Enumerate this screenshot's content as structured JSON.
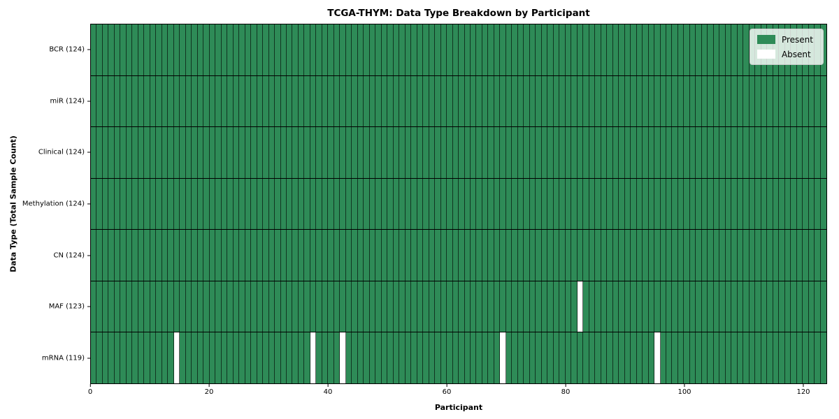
{
  "chart_data": {
    "type": "heatmap",
    "title": "TCGA-THYM: Data Type Breakdown by Participant",
    "xlabel": "Participant",
    "ylabel": "Data Type (Total Sample Count)",
    "xlim": [
      0,
      124
    ],
    "n_participants": 124,
    "x_ticks": [
      0,
      20,
      40,
      60,
      80,
      100,
      120
    ],
    "grid": "cell-borders-on",
    "legend_position": "upper-right",
    "rows": [
      {
        "label": "BCR (124)",
        "data_type": "BCR",
        "present_count": 124,
        "absent_participants": []
      },
      {
        "label": "miR (124)",
        "data_type": "miR",
        "present_count": 124,
        "absent_participants": []
      },
      {
        "label": "Clinical (124)",
        "data_type": "Clinical",
        "present_count": 124,
        "absent_participants": []
      },
      {
        "label": "Methylation (124)",
        "data_type": "Methylation",
        "present_count": 124,
        "absent_participants": []
      },
      {
        "label": "CN (124)",
        "data_type": "CN",
        "present_count": 124,
        "absent_participants": []
      },
      {
        "label": "MAF (123)",
        "data_type": "MAF",
        "present_count": 123,
        "absent_participants": [
          82
        ]
      },
      {
        "label": "mRNA (119)",
        "data_type": "mRNA",
        "present_count": 119,
        "absent_participants": [
          14,
          37,
          42,
          69,
          95
        ]
      }
    ],
    "legend": [
      {
        "label": "Present",
        "color": "#2e8b57"
      },
      {
        "label": "Absent",
        "color": "#ffffff"
      }
    ],
    "colors": {
      "present": "#2e8b57",
      "absent": "#ffffff",
      "cell_border": "rgba(0,0,0,0.62)",
      "row_separator": "#000000",
      "plot_border": "#000000",
      "background": "#ffffff"
    }
  }
}
